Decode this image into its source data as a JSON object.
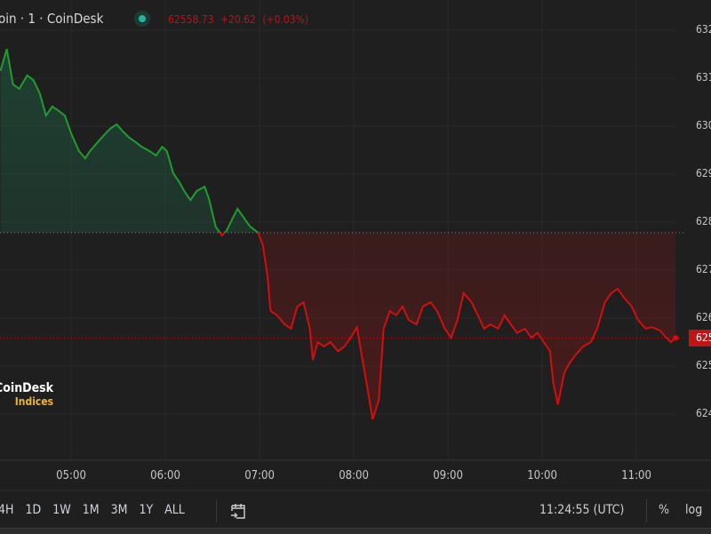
{
  "header": {
    "title": "oin · 1 · CoinDesk",
    "status": "market-open-dot",
    "price": "62558.73",
    "change": "+20.62",
    "change_pct": "(+0.03%)"
  },
  "colors": {
    "up": "#1e9e2e",
    "down": "#d10f0f",
    "background": "#1f1f1f",
    "badge": "#c11414",
    "logo_accent": "#e9b62e"
  },
  "price_axis": {
    "labels": [
      "632",
      "631",
      "630",
      "629",
      "628",
      "627",
      "626",
      "625",
      "624"
    ],
    "current_badge": "625"
  },
  "time_axis": {
    "labels": [
      "05:00",
      "06:00",
      "07:00",
      "08:00",
      "09:00",
      "10:00",
      "11:00"
    ]
  },
  "logo": {
    "line1": "CoinDesk",
    "line2": "Indices"
  },
  "toolbar": {
    "ranges": [
      "4H",
      "1D",
      "1W",
      "1M",
      "3M",
      "1Y",
      "ALL"
    ],
    "date_range_icon": "calendar-goto-icon",
    "clock": "11:24:55 (UTC)",
    "percent": "%",
    "log": "log"
  },
  "chart_data": {
    "type": "line",
    "baseline": 62778,
    "current_price": 62558.73,
    "ylim": [
      62330,
      63300
    ],
    "xlim": [
      "04:15",
      "11:25"
    ],
    "grid": true,
    "points": [
      [
        "04:15",
        63115
      ],
      [
        "04:19",
        63161
      ],
      [
        "04:23",
        63087
      ],
      [
        "04:27",
        63078
      ],
      [
        "04:32",
        63106
      ],
      [
        "04:36",
        63096
      ],
      [
        "04:40",
        63069
      ],
      [
        "04:44",
        63022
      ],
      [
        "04:48",
        63041
      ],
      [
        "04:52",
        63032
      ],
      [
        "04:56",
        63022
      ],
      [
        "05:00",
        62985
      ],
      [
        "05:05",
        62948
      ],
      [
        "05:09",
        62933
      ],
      [
        "05:12",
        62948
      ],
      [
        "05:17",
        62967
      ],
      [
        "05:22",
        62985
      ],
      [
        "05:25",
        62995
      ],
      [
        "05:29",
        63004
      ],
      [
        "05:33",
        62989
      ],
      [
        "05:37",
        62976
      ],
      [
        "05:41",
        62967
      ],
      [
        "05:45",
        62957
      ],
      [
        "05:50",
        62948
      ],
      [
        "05:54",
        62939
      ],
      [
        "05:58",
        62957
      ],
      [
        "06:01",
        62948
      ],
      [
        "06:05",
        62902
      ],
      [
        "06:09",
        62883
      ],
      [
        "06:12",
        62865
      ],
      [
        "06:16",
        62846
      ],
      [
        "06:20",
        62865
      ],
      [
        "06:25",
        62874
      ],
      [
        "06:28",
        62846
      ],
      [
        "06:32",
        62791
      ],
      [
        "06:36",
        62772
      ],
      [
        "06:39",
        62782
      ],
      [
        "06:43",
        62809
      ],
      [
        "06:46",
        62828
      ],
      [
        "06:50",
        62809
      ],
      [
        "06:54",
        62791
      ],
      [
        "06:59",
        62778
      ],
      [
        "07:02",
        62754
      ],
      [
        "07:05",
        62689
      ],
      [
        "07:07",
        62615
      ],
      [
        "07:11",
        62606
      ],
      [
        "07:16",
        62587
      ],
      [
        "07:20",
        62578
      ],
      [
        "07:24",
        62624
      ],
      [
        "07:28",
        62633
      ],
      [
        "07:32",
        62578
      ],
      [
        "07:34",
        62513
      ],
      [
        "07:37",
        62550
      ],
      [
        "07:41",
        62541
      ],
      [
        "07:45",
        62550
      ],
      [
        "07:50",
        62531
      ],
      [
        "07:54",
        62541
      ],
      [
        "07:58",
        62559
      ],
      [
        "08:02",
        62581
      ],
      [
        "08:06",
        62504
      ],
      [
        "08:09",
        62448
      ],
      [
        "08:12",
        62389
      ],
      [
        "08:16",
        62430
      ],
      [
        "08:19",
        62578
      ],
      [
        "08:23",
        62615
      ],
      [
        "08:27",
        62606
      ],
      [
        "08:31",
        62624
      ],
      [
        "08:35",
        62596
      ],
      [
        "08:40",
        62587
      ],
      [
        "08:44",
        62624
      ],
      [
        "08:49",
        62633
      ],
      [
        "08:53",
        62615
      ],
      [
        "08:58",
        62578
      ],
      [
        "09:02",
        62559
      ],
      [
        "09:06",
        62596
      ],
      [
        "09:10",
        62652
      ],
      [
        "09:15",
        62633
      ],
      [
        "09:19",
        62606
      ],
      [
        "09:23",
        62578
      ],
      [
        "09:27",
        62587
      ],
      [
        "09:32",
        62578
      ],
      [
        "09:36",
        62606
      ],
      [
        "09:40",
        62587
      ],
      [
        "09:44",
        62569
      ],
      [
        "09:49",
        62578
      ],
      [
        "09:53",
        62559
      ],
      [
        "09:57",
        62569
      ],
      [
        "10:01",
        62550
      ],
      [
        "10:05",
        62531
      ],
      [
        "10:07",
        62467
      ],
      [
        "10:10",
        62420
      ],
      [
        "10:14",
        62485
      ],
      [
        "10:17",
        62504
      ],
      [
        "10:21",
        62522
      ],
      [
        "10:26",
        62541
      ],
      [
        "10:31",
        62550
      ],
      [
        "10:35",
        62578
      ],
      [
        "10:40",
        62633
      ],
      [
        "10:44",
        62652
      ],
      [
        "10:48",
        62661
      ],
      [
        "10:52",
        62643
      ],
      [
        "10:57",
        62624
      ],
      [
        "11:01",
        62596
      ],
      [
        "11:06",
        62578
      ],
      [
        "11:10",
        62581
      ],
      [
        "11:15",
        62574
      ],
      [
        "11:19",
        62559
      ],
      [
        "11:22",
        62550
      ],
      [
        "11:25",
        62558.73
      ]
    ]
  }
}
